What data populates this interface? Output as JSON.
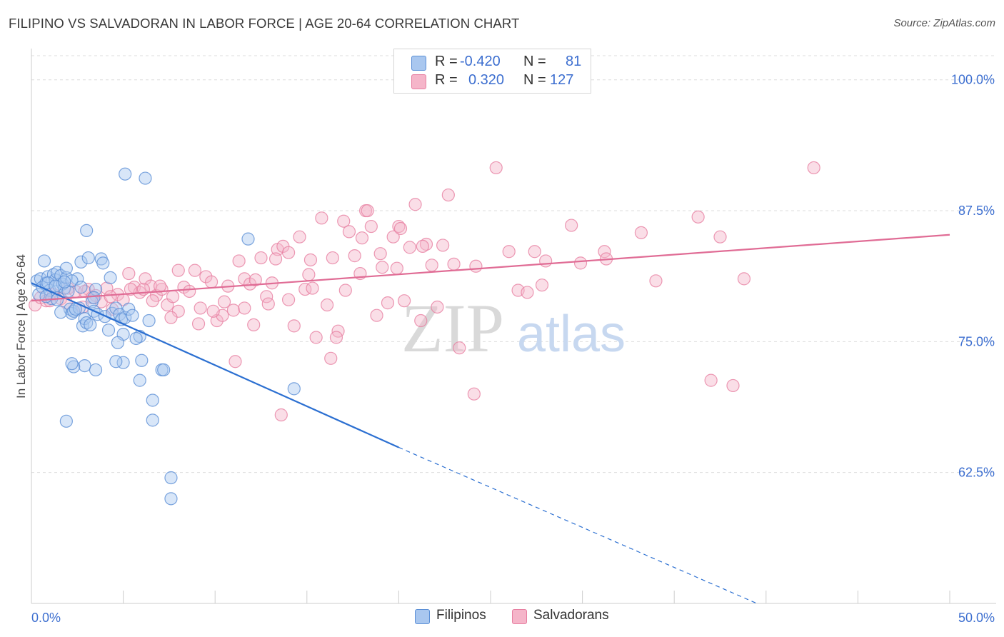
{
  "title": "FILIPINO VS SALVADORAN IN LABOR FORCE | AGE 20-64 CORRELATION CHART",
  "source": "Source: ZipAtlas.com",
  "watermark": {
    "zip": "ZIP",
    "atlas": "atlas"
  },
  "legend": {
    "r_label": "R =",
    "n_label": "N =",
    "rows": [
      {
        "r": "-0.420",
        "n": "81"
      },
      {
        "r": "0.320",
        "n": "127"
      }
    ]
  },
  "colors": {
    "filipinos_fill": "#a9c7ef",
    "filipinos_stroke": "#5b8fd6",
    "filipinos_line": "#2b6fd1",
    "salvadorans_fill": "#f5b5c9",
    "salvadorans_stroke": "#e77fa1",
    "salvadorans_line": "#e06c95",
    "axis_text": "#3d6fd0",
    "grid": "#dddddd"
  },
  "chart_data": {
    "type": "scatter",
    "title": "FILIPINO VS SALVADORAN IN LABOR FORCE | AGE 20-64 CORRELATION CHART",
    "xlabel": "",
    "ylabel": "In Labor Force | Age 20-64",
    "xlim": [
      0,
      50
    ],
    "ylim": [
      50,
      102.3
    ],
    "x_tick_labels": [
      "0.0%",
      "50.0%"
    ],
    "y_ticks": [
      62.5,
      75.0,
      87.5,
      100.0
    ],
    "y_tick_labels": [
      "62.5%",
      "75.0%",
      "87.5%",
      "100.0%"
    ],
    "grid": true,
    "legend_position": "bottom-center",
    "series": [
      {
        "name": "Filipinos",
        "r": -0.42,
        "n": 81,
        "trend": {
          "x": [
            0.0,
            20.0
          ],
          "y": [
            80.6,
            64.9
          ],
          "dashed_to": [
            39.5,
            50.0
          ]
        },
        "points": [
          [
            0.3,
            80.8
          ],
          [
            0.4,
            79.5
          ],
          [
            0.5,
            81.0
          ],
          [
            0.6,
            80.2
          ],
          [
            0.7,
            82.7
          ],
          [
            0.8,
            80.6
          ],
          [
            0.9,
            81.2
          ],
          [
            1.0,
            79.9
          ],
          [
            1.1,
            79.1
          ],
          [
            1.2,
            81.4
          ],
          [
            1.3,
            80.9
          ],
          [
            1.4,
            81.6
          ],
          [
            1.5,
            80.3
          ],
          [
            1.6,
            81.3
          ],
          [
            1.7,
            80.5
          ],
          [
            1.8,
            80.1
          ],
          [
            1.9,
            81.1
          ],
          [
            2.0,
            79.8
          ],
          [
            2.1,
            78.1
          ],
          [
            1.6,
            77.8
          ],
          [
            1.9,
            82.0
          ],
          [
            2.2,
            77.7
          ],
          [
            2.3,
            77.9
          ],
          [
            2.5,
            81.0
          ],
          [
            2.6,
            78.2
          ],
          [
            2.7,
            82.6
          ],
          [
            2.8,
            76.5
          ],
          [
            2.9,
            77.2
          ],
          [
            3.0,
            76.8
          ],
          [
            3.1,
            83.0
          ],
          [
            3.2,
            76.6
          ],
          [
            3.3,
            78.8
          ],
          [
            3.4,
            77.9
          ],
          [
            3.5,
            80.0
          ],
          [
            3.6,
            77.6
          ],
          [
            3.8,
            82.9
          ],
          [
            3.9,
            82.5
          ],
          [
            4.0,
            77.4
          ],
          [
            4.2,
            76.1
          ],
          [
            4.3,
            81.1
          ],
          [
            4.4,
            77.7
          ],
          [
            4.6,
            78.2
          ],
          [
            4.8,
            77.6
          ],
          [
            4.9,
            77.1
          ],
          [
            5.0,
            75.7
          ],
          [
            5.1,
            77.3
          ],
          [
            5.3,
            78.1
          ],
          [
            5.5,
            77.5
          ],
          [
            5.9,
            75.5
          ],
          [
            5.7,
            75.3
          ],
          [
            6.0,
            73.2
          ],
          [
            5.0,
            73.0
          ],
          [
            4.6,
            73.1
          ],
          [
            5.1,
            91.0
          ],
          [
            6.2,
            90.6
          ],
          [
            6.4,
            77.0
          ],
          [
            5.9,
            71.3
          ],
          [
            2.9,
            72.7
          ],
          [
            3.5,
            72.3
          ],
          [
            2.3,
            72.6
          ],
          [
            2.2,
            72.9
          ],
          [
            4.7,
            74.9
          ],
          [
            3.0,
            85.6
          ],
          [
            11.8,
            84.8
          ],
          [
            14.3,
            70.5
          ],
          [
            7.1,
            72.3
          ],
          [
            7.2,
            72.3
          ],
          [
            6.6,
            69.4
          ],
          [
            6.6,
            67.5
          ],
          [
            1.9,
            67.4
          ],
          [
            7.6,
            62.0
          ],
          [
            7.6,
            60.0
          ],
          [
            2.4,
            78.1
          ],
          [
            0.8,
            79.3
          ],
          [
            1.4,
            79.0
          ],
          [
            0.9,
            80.6
          ],
          [
            2.2,
            80.8
          ],
          [
            3.4,
            79.2
          ],
          [
            1.3,
            80.3
          ],
          [
            2.7,
            80.2
          ],
          [
            1.8,
            80.7
          ]
        ]
      },
      {
        "name": "Salvadorans",
        "r": 0.32,
        "n": 127,
        "trend": {
          "x": [
            0.0,
            50.0
          ],
          "y": [
            78.9,
            85.2
          ]
        },
        "points": [
          [
            0.2,
            78.5
          ],
          [
            0.5,
            79.2
          ],
          [
            0.8,
            78.9
          ],
          [
            1.2,
            79.5
          ],
          [
            1.6,
            79.1
          ],
          [
            2.0,
            80.1
          ],
          [
            2.4,
            79.8
          ],
          [
            2.8,
            78.3
          ],
          [
            3.1,
            80.0
          ],
          [
            3.5,
            79.4
          ],
          [
            3.8,
            78.8
          ],
          [
            4.1,
            80.1
          ],
          [
            4.4,
            78.1
          ],
          [
            4.7,
            79.5
          ],
          [
            5.0,
            79.0
          ],
          [
            5.3,
            81.5
          ],
          [
            5.6,
            80.2
          ],
          [
            5.9,
            79.7
          ],
          [
            6.2,
            81.0
          ],
          [
            6.5,
            80.3
          ],
          [
            6.8,
            79.4
          ],
          [
            7.1,
            80.0
          ],
          [
            7.4,
            78.5
          ],
          [
            7.7,
            79.3
          ],
          [
            8.0,
            77.9
          ],
          [
            8.3,
            80.2
          ],
          [
            8.6,
            79.8
          ],
          [
            8.9,
            81.8
          ],
          [
            9.2,
            78.2
          ],
          [
            9.5,
            81.2
          ],
          [
            9.8,
            80.7
          ],
          [
            10.1,
            77.0
          ],
          [
            10.4,
            77.5
          ],
          [
            10.7,
            80.3
          ],
          [
            11.0,
            78.0
          ],
          [
            11.3,
            82.7
          ],
          [
            11.6,
            81.0
          ],
          [
            11.9,
            80.5
          ],
          [
            12.2,
            80.9
          ],
          [
            12.5,
            83.0
          ],
          [
            12.8,
            79.3
          ],
          [
            13.1,
            80.6
          ],
          [
            13.4,
            83.8
          ],
          [
            13.7,
            84.1
          ],
          [
            14.0,
            79.0
          ],
          [
            14.3,
            76.5
          ],
          [
            14.6,
            85.0
          ],
          [
            14.9,
            80.0
          ],
          [
            15.2,
            82.8
          ],
          [
            15.5,
            75.4
          ],
          [
            15.8,
            86.8
          ],
          [
            16.1,
            78.5
          ],
          [
            16.4,
            83.0
          ],
          [
            16.7,
            76.0
          ],
          [
            17.0,
            86.5
          ],
          [
            17.3,
            85.5
          ],
          [
            17.6,
            83.2
          ],
          [
            17.9,
            81.5
          ],
          [
            18.2,
            87.5
          ],
          [
            18.5,
            86.0
          ],
          [
            18.8,
            77.5
          ],
          [
            19.1,
            82.1
          ],
          [
            19.4,
            78.7
          ],
          [
            19.7,
            85.0
          ],
          [
            20.0,
            86.0
          ],
          [
            20.3,
            78.9
          ],
          [
            20.6,
            84.0
          ],
          [
            20.9,
            88.1
          ],
          [
            21.2,
            77.0
          ],
          [
            21.5,
            84.3
          ],
          [
            21.8,
            82.3
          ],
          [
            22.1,
            78.3
          ],
          [
            22.4,
            84.2
          ],
          [
            22.7,
            89.0
          ],
          [
            23.0,
            82.4
          ],
          [
            23.3,
            74.4
          ],
          [
            24.1,
            70.0
          ],
          [
            25.3,
            91.6
          ],
          [
            26.0,
            83.6
          ],
          [
            26.5,
            79.9
          ],
          [
            27.0,
            79.7
          ],
          [
            27.4,
            83.6
          ],
          [
            27.8,
            80.4
          ],
          [
            28.0,
            82.7
          ],
          [
            29.4,
            86.1
          ],
          [
            29.9,
            82.5
          ],
          [
            31.2,
            83.6
          ],
          [
            31.3,
            82.9
          ],
          [
            33.2,
            85.4
          ],
          [
            34.0,
            80.8
          ],
          [
            36.3,
            86.9
          ],
          [
            37.0,
            71.3
          ],
          [
            37.5,
            85.0
          ],
          [
            38.2,
            70.8
          ],
          [
            38.8,
            81.0
          ],
          [
            42.6,
            91.6
          ],
          [
            8.0,
            81.8
          ],
          [
            13.6,
            68.0
          ],
          [
            11.1,
            73.1
          ],
          [
            10.5,
            78.8
          ],
          [
            9.9,
            77.9
          ],
          [
            11.6,
            78.2
          ],
          [
            13.3,
            82.9
          ],
          [
            15.1,
            81.4
          ],
          [
            16.3,
            73.4
          ],
          [
            16.6,
            75.4
          ],
          [
            17.1,
            79.9
          ],
          [
            18.0,
            84.9
          ],
          [
            19.0,
            83.4
          ],
          [
            20.1,
            85.8
          ],
          [
            21.3,
            84.1
          ],
          [
            14.0,
            83.5
          ],
          [
            12.1,
            76.6
          ],
          [
            7.6,
            77.3
          ],
          [
            9.1,
            76.7
          ],
          [
            6.6,
            78.9
          ],
          [
            5.4,
            80.0
          ],
          [
            4.3,
            79.3
          ],
          [
            2.9,
            79.8
          ],
          [
            1.9,
            78.7
          ],
          [
            1.0,
            78.9
          ],
          [
            3.3,
            79.2
          ],
          [
            6.1,
            80.0
          ],
          [
            7.0,
            80.3
          ],
          [
            12.9,
            78.6
          ],
          [
            15.3,
            80.1
          ],
          [
            18.3,
            87.5
          ],
          [
            19.9,
            82.0
          ],
          [
            24.2,
            82.2
          ]
        ]
      }
    ]
  }
}
